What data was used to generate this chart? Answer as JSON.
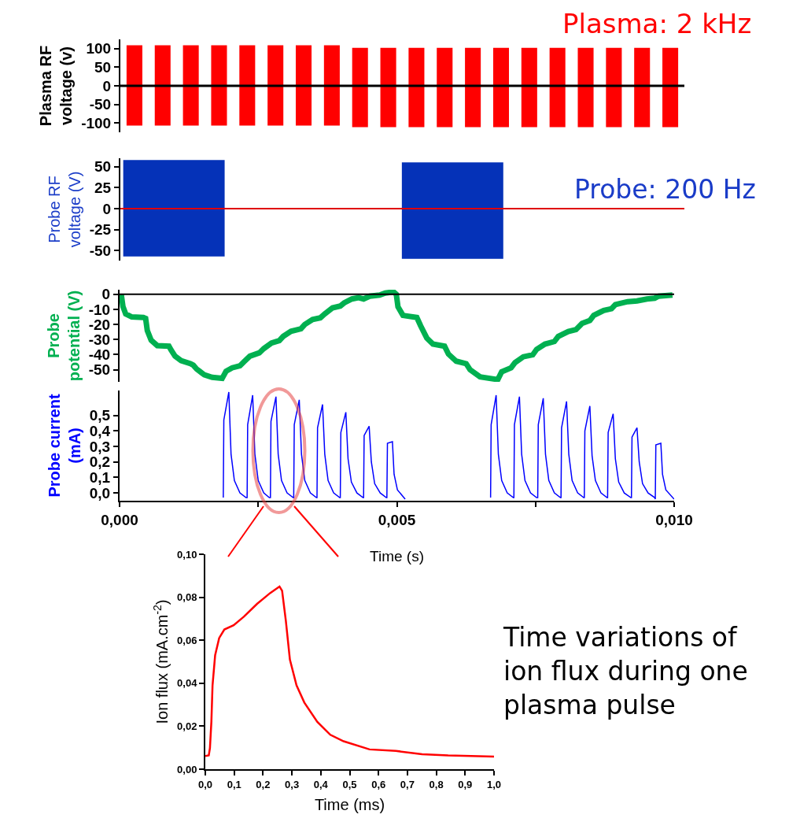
{
  "chart_data": [
    {
      "type": "bar",
      "ylabel": "Plasma RF\nvoltage (v)",
      "color": "#ff0000",
      "categories": [
        null,
        null,
        null,
        null,
        null,
        null,
        null,
        null,
        null,
        null,
        null,
        null,
        null,
        null,
        null,
        null,
        null,
        null,
        null,
        null
      ],
      "base": [
        -107,
        -107,
        -107,
        -107,
        -107,
        -107,
        -107,
        -107,
        -111,
        -111,
        -111,
        -111,
        -111,
        -111,
        -111,
        -111,
        -111,
        -111,
        -111,
        -111
      ],
      "values": [
        216,
        216,
        216,
        216,
        216,
        216,
        216,
        216,
        213,
        213,
        213,
        213,
        213,
        213,
        213,
        213,
        213,
        213,
        213,
        213
      ],
      "ylim": [
        -125,
        125
      ],
      "yticks": [
        100,
        50,
        0,
        -50,
        -100
      ],
      "tick_labels": "y",
      "ref_lines": [
        {
          "axis": "y",
          "value": 0,
          "color": "#000000"
        }
      ],
      "annotations": [
        "Plasma: 2 kHz"
      ]
    },
    {
      "type": "bar",
      "ylabel": "Probe RF\nvoltage (V)",
      "color": "#0532b8",
      "x": [
        0.00095,
        0.00589
      ],
      "base": [
        -57,
        -60
      ],
      "values": [
        115,
        115
      ],
      "xlim": [
        0,
        0.01
      ],
      "ylim": [
        -62,
        60
      ],
      "yticks": [
        50,
        25,
        0,
        -25,
        -50
      ],
      "tick_labels": "y",
      "ref_lines": [
        {
          "axis": "y",
          "value": 0,
          "color": "#e00000"
        }
      ],
      "annotations": [
        "Probe: 200 Hz"
      ]
    },
    {
      "type": "line",
      "ylabel": "Probe\npotential (V)",
      "color": "#00b050",
      "x": [
        3e-05,
        6e-05,
        0.00011,
        0.00022,
        0.00043,
        0.00047,
        0.0005,
        0.00057,
        0.00068,
        0.00089,
        0.00093,
        0.001,
        0.00111,
        0.00128,
        0.00133,
        0.00139,
        0.00153,
        0.00167,
        0.00185,
        0.00192,
        0.00203,
        0.00217,
        0.00224,
        0.00235,
        0.00252,
        0.0026,
        0.00274,
        0.00288,
        0.00295,
        0.00309,
        0.00327,
        0.00334,
        0.00348,
        0.00362,
        0.0037,
        0.00384,
        0.00398,
        0.00405,
        0.00419,
        0.00431,
        0.0044,
        0.00451,
        0.00469,
        0.00479,
        0.00494,
        0.00499,
        0.00502,
        0.00511,
        0.00536,
        0.00543,
        0.00554,
        0.00565,
        0.00586,
        0.00593,
        0.00607,
        0.00625,
        0.00632,
        0.0065,
        0.00682,
        0.00689,
        0.00706,
        0.00713,
        0.00728,
        0.00745,
        0.00752,
        0.00767,
        0.00784,
        0.00791,
        0.00809,
        0.00823,
        0.00834,
        0.00848,
        0.00855,
        0.00873,
        0.00887,
        0.00894,
        0.00916,
        0.00933,
        0.00951,
        0.00965,
        0.00972,
        0.00997
      ],
      "values": [
        0,
        -8,
        -13,
        -15,
        -15.4,
        -16,
        -24,
        -30.5,
        -34,
        -34.4,
        -37,
        -41,
        -44,
        -46,
        -47,
        -49.5,
        -53.4,
        -55,
        -55.7,
        -51,
        -48.7,
        -47.4,
        -44.8,
        -41,
        -38.8,
        -36,
        -32.3,
        -30.7,
        -27.9,
        -24.5,
        -22.9,
        -20,
        -16.7,
        -15.6,
        -13,
        -9,
        -7.8,
        -5.7,
        -3.1,
        -2.3,
        -3.1,
        -1.3,
        -0.5,
        0.8,
        1.6,
        0,
        -8.3,
        -14,
        -15.4,
        -21,
        -29,
        -33,
        -34.4,
        -39.6,
        -44.3,
        -46,
        -50,
        -54.7,
        -56.5,
        -51.3,
        -48.7,
        -45.3,
        -41.4,
        -40.1,
        -36.5,
        -33,
        -31.3,
        -27.9,
        -24.7,
        -23.4,
        -19.3,
        -17.4,
        -14,
        -10.7,
        -9.6,
        -6.8,
        -4.9,
        -4.4,
        -3.1,
        -2.6,
        -1.3,
        -0.5
      ],
      "xlim": [
        0,
        0.01
      ],
      "ylim": [
        -58,
        3
      ],
      "yticks": [
        0,
        -10,
        -20,
        -30,
        -40,
        -50
      ],
      "tick_labels": "y",
      "ref_lines": [
        {
          "axis": "y",
          "value": 0,
          "color": "#000000"
        }
      ]
    },
    {
      "type": "line",
      "ylabel": "Probe current\n(mA)",
      "xlabel": "Time (s)",
      "color": "#0000ff",
      "x": [
        0.00187,
        0.00188,
        0.00197,
        0.00201,
        0.00207,
        0.00217,
        0.00228,
        0.0023,
        0.00231,
        0.0024,
        0.00244,
        0.0025,
        0.0026,
        0.0027,
        0.00272,
        0.00273,
        0.00282,
        0.00286,
        0.00292,
        0.00302,
        0.00313,
        0.00314,
        0.00315,
        0.00324,
        0.00328,
        0.00334,
        0.00344,
        0.00355,
        0.00356,
        0.00357,
        0.00366,
        0.0037,
        0.00376,
        0.00386,
        0.00397,
        0.00398,
        0.00399,
        0.00408,
        0.00412,
        0.00418,
        0.00428,
        0.00439,
        0.0044,
        0.00441,
        0.0045,
        0.00454,
        0.0046,
        0.0047,
        0.00481,
        0.00482,
        0.00483,
        0.00492,
        0.00495,
        0.00501,
        0.00515,
        0.0058,
        0.00669,
        0.0067,
        0.00679,
        0.00683,
        0.00689,
        0.00699,
        0.0071,
        0.00711,
        0.00712,
        0.00721,
        0.00725,
        0.00731,
        0.00741,
        0.00752,
        0.00754,
        0.00755,
        0.00764,
        0.00768,
        0.00774,
        0.00784,
        0.00795,
        0.00796,
        0.00797,
        0.00806,
        0.0081,
        0.00816,
        0.00826,
        0.00837,
        0.00838,
        0.00839,
        0.00848,
        0.00852,
        0.00858,
        0.00868,
        0.00879,
        0.0088,
        0.00881,
        0.0089,
        0.00894,
        0.009,
        0.0091,
        0.00922,
        0.00923,
        0.00924,
        0.00933,
        0.00937,
        0.00943,
        0.00953,
        0.00965,
        0.00966,
        0.00967,
        0.00976,
        0.00979,
        0.00985,
        0.01
      ],
      "values": [
        -0.03,
        0.47,
        0.65,
        0.25,
        0.08,
        0,
        -0.03,
        -0.03,
        0.44,
        0.63,
        0.25,
        0.08,
        0,
        -0.03,
        -0.03,
        0.46,
        0.62,
        0.25,
        0.08,
        0,
        -0.03,
        -0.03,
        0.44,
        0.6,
        0.25,
        0.08,
        0,
        -0.03,
        -0.03,
        0.42,
        0.57,
        0.25,
        0.08,
        0,
        -0.03,
        -0.03,
        0.39,
        0.52,
        0.22,
        0.07,
        0,
        -0.03,
        -0.03,
        0.37,
        0.43,
        0.2,
        0.06,
        0,
        -0.03,
        -0.03,
        0.32,
        0.33,
        0.12,
        0.02,
        -0.04,
        null,
        -0.03,
        0.44,
        0.63,
        0.25,
        0.08,
        0,
        -0.03,
        -0.03,
        0.44,
        0.62,
        0.25,
        0.08,
        0,
        -0.03,
        -0.03,
        0.44,
        0.61,
        0.25,
        0.08,
        0,
        -0.03,
        -0.03,
        0.42,
        0.59,
        0.25,
        0.08,
        0,
        -0.03,
        -0.03,
        0.4,
        0.56,
        0.24,
        0.08,
        0,
        -0.03,
        -0.03,
        0.39,
        0.51,
        0.22,
        0.07,
        0,
        -0.03,
        -0.03,
        0.36,
        0.42,
        0.2,
        0.06,
        0,
        -0.03,
        -0.04,
        0.31,
        0.32,
        0.12,
        0.02,
        -0.04
      ],
      "xlim": [
        0,
        0.01
      ],
      "ylim": [
        -0.05,
        0.66
      ],
      "xticks": [
        {
          "value": 0,
          "label": "0,000"
        },
        {
          "value": 0.0025,
          "label": null
        },
        {
          "value": 0.005,
          "label": "0,005"
        },
        {
          "value": 0.0075,
          "label": null
        },
        {
          "value": 0.01,
          "label": "0,010"
        }
      ],
      "yticks": [
        {
          "value": 0,
          "label": "0,0"
        },
        {
          "value": 0.1,
          "label": "0,1"
        },
        {
          "value": 0.2,
          "label": "0,2"
        },
        {
          "value": 0.3,
          "label": "0,3"
        },
        {
          "value": 0.4,
          "label": "0,4"
        },
        {
          "value": 0.5,
          "label": "0,5"
        }
      ]
    },
    {
      "type": "line",
      "xlabel": "Time (ms)",
      "ylabel": "Ion flux (mA.cm$^{-2}$)",
      "color": "#ff0000",
      "x": [
        0,
        0.012,
        0.016,
        0.021,
        0.025,
        0.034,
        0.048,
        0.066,
        0.098,
        0.134,
        0.18,
        0.225,
        0.257,
        0.266,
        0.279,
        0.293,
        0.316,
        0.343,
        0.388,
        0.433,
        0.479,
        0.569,
        0.66,
        0.751,
        0.841,
        1
      ],
      "values": [
        0.0061,
        0.0064,
        0.0098,
        0.022,
        0.039,
        0.053,
        0.061,
        0.065,
        0.067,
        0.071,
        0.077,
        0.082,
        0.085,
        0.083,
        0.069,
        0.051,
        0.039,
        0.031,
        0.022,
        0.016,
        0.013,
        0.0092,
        0.0085,
        0.007,
        0.0064,
        0.0059
      ],
      "xlim": [
        0,
        1
      ],
      "ylim": [
        0,
        0.1
      ],
      "xticks": [
        {
          "value": 0,
          "label": "0,0"
        },
        {
          "value": 0.1,
          "label": "0,1"
        },
        {
          "value": 0.2,
          "label": "0,2"
        },
        {
          "value": 0.3,
          "label": "0,3"
        },
        {
          "value": 0.4,
          "label": "0,4"
        },
        {
          "value": 0.5,
          "label": "0,5"
        },
        {
          "value": 0.6,
          "label": "0,6"
        },
        {
          "value": 0.7,
          "label": "0,7"
        },
        {
          "value": 0.8,
          "label": "0,8"
        },
        {
          "value": 0.9,
          "label": "0,9"
        },
        {
          "value": 1,
          "label": "1,0"
        }
      ],
      "yticks": [
        {
          "value": 0,
          "label": "0,00"
        },
        {
          "value": 0.02,
          "label": "0,02"
        },
        {
          "value": 0.04,
          "label": "0,04"
        },
        {
          "value": 0.06,
          "label": "0,06"
        },
        {
          "value": 0.08,
          "label": "0,08"
        },
        {
          "value": 0.1,
          "label": "0,10"
        }
      ],
      "annotations": [
        "Time variations of\nion flux during one\nplasma pulse"
      ]
    }
  ]
}
